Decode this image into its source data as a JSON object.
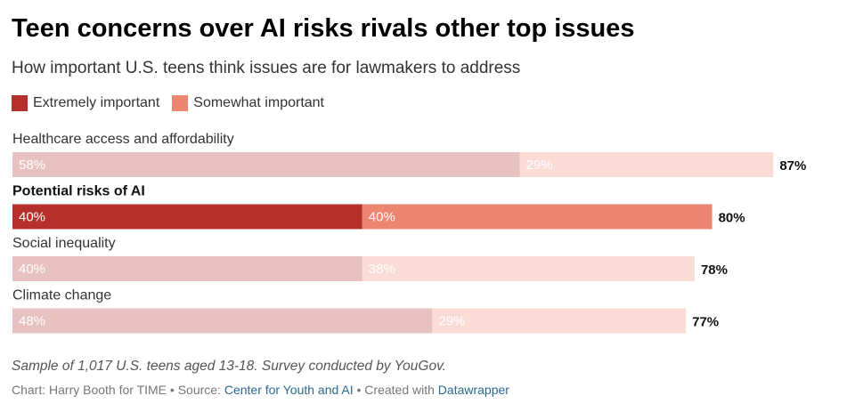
{
  "chart_data": {
    "type": "bar",
    "orientation": "horizontal",
    "stacked": true,
    "title": "Teen concerns over AI risks rivals other top issues",
    "subtitle": "How important U.S. teens think issues are for lawmakers to address",
    "categories": [
      "Healthcare access and affordability",
      "Potential risks of AI",
      "Social inequality",
      "Climate change"
    ],
    "highlighted_category": "Potential risks of AI",
    "series": [
      {
        "name": "Extremely important",
        "values": [
          58,
          40,
          40,
          48
        ]
      },
      {
        "name": "Somewhat important",
        "values": [
          29,
          40,
          38,
          29
        ]
      }
    ],
    "totals": [
      87,
      80,
      78,
      77
    ],
    "xlim": [
      0,
      100
    ],
    "value_suffix": "%",
    "legend": "top-left",
    "colors": {
      "extremely": "#b5302a",
      "somewhat": "#ec8670",
      "extremely_muted": "#e8c2c0",
      "somewhat_muted": "#fadbd6"
    }
  },
  "footer": {
    "note": "Sample of 1,017 U.S. teens aged 13-18. Survey conducted by YouGov.",
    "credit_prefix": "Chart: Harry Booth for TIME • Source: ",
    "source_link": "Center for Youth and AI",
    "credit_middle": " • Created with ",
    "tool_link": "Datawrapper"
  }
}
